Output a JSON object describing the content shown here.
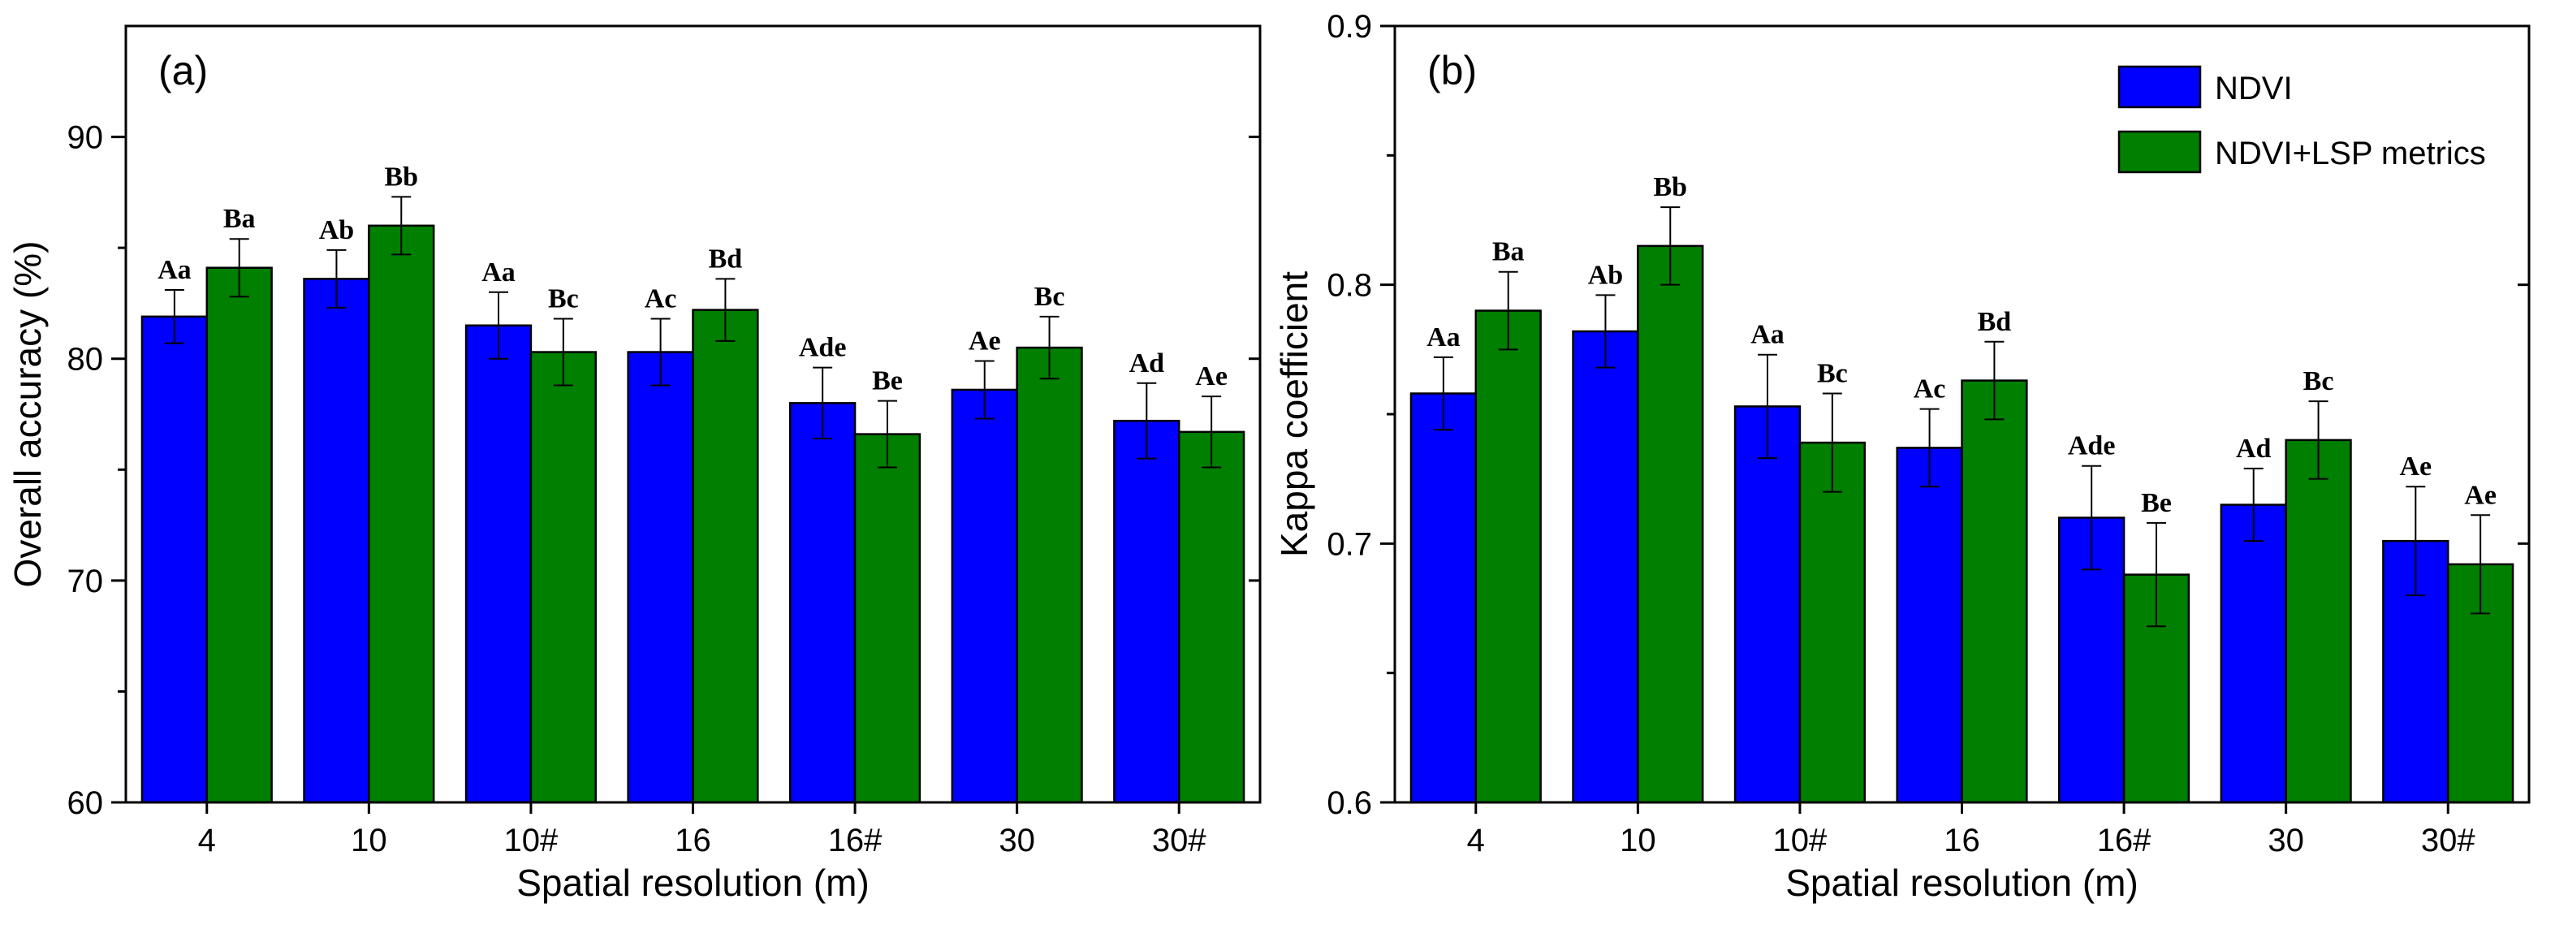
{
  "chart_data": [
    {
      "type": "bar",
      "panel_label": "(a)",
      "title": "",
      "xlabel": "Spatial resolution (m)",
      "ylabel": "Overall accuracy (%)",
      "ylim": [
        60,
        95
      ],
      "yticks": [
        60,
        70,
        80,
        90
      ],
      "y_decimals": 0,
      "categories": [
        "4",
        "10",
        "10#",
        "16",
        "16#",
        "30",
        "30#"
      ],
      "series": [
        {
          "name": "NDVI",
          "values": [
            81.9,
            83.6,
            81.5,
            80.3,
            78.0,
            78.6,
            77.2
          ],
          "errors": [
            1.2,
            1.3,
            1.5,
            1.5,
            1.6,
            1.3,
            1.7
          ],
          "labels": [
            "Aa",
            "Ab",
            "Aa",
            "Ac",
            "Ade",
            "Ae",
            "Ad"
          ]
        },
        {
          "name": "NDVI+LSP metrics",
          "values": [
            84.1,
            86.0,
            80.3,
            82.2,
            76.6,
            80.5,
            76.7
          ],
          "errors": [
            1.3,
            1.3,
            1.5,
            1.4,
            1.5,
            1.4,
            1.6
          ],
          "labels": [
            "Ba",
            "Bb",
            "Bc",
            "Bd",
            "Be",
            "Bc",
            "Ae"
          ]
        }
      ],
      "legend": false
    },
    {
      "type": "bar",
      "panel_label": "(b)",
      "title": "",
      "xlabel": "Spatial resolution (m)",
      "ylabel": "Kappa coefficient",
      "ylim": [
        0.6,
        0.9
      ],
      "yticks": [
        0.6,
        0.7,
        0.8,
        0.9
      ],
      "y_decimals": 1,
      "categories": [
        "4",
        "10",
        "10#",
        "16",
        "16#",
        "30",
        "30#"
      ],
      "series": [
        {
          "name": "NDVI",
          "values": [
            0.758,
            0.782,
            0.753,
            0.737,
            0.71,
            0.715,
            0.701
          ],
          "errors": [
            0.014,
            0.014,
            0.02,
            0.015,
            0.02,
            0.014,
            0.021
          ],
          "labels": [
            "Aa",
            "Ab",
            "Aa",
            "Ac",
            "Ade",
            "Ad",
            "Ae"
          ]
        },
        {
          "name": "NDVI+LSP metrics",
          "values": [
            0.79,
            0.815,
            0.739,
            0.763,
            0.688,
            0.74,
            0.692
          ],
          "errors": [
            0.015,
            0.015,
            0.019,
            0.015,
            0.02,
            0.015,
            0.019
          ],
          "labels": [
            "Ba",
            "Bb",
            "Bc",
            "Bd",
            "Be",
            "Bc",
            "Ae"
          ]
        }
      ],
      "legend": true,
      "legend_position": "top-right"
    }
  ],
  "colors": {
    "NDVI": "#0000ff",
    "NDVI+LSP metrics": "#007f00",
    "axis": "#000000"
  }
}
